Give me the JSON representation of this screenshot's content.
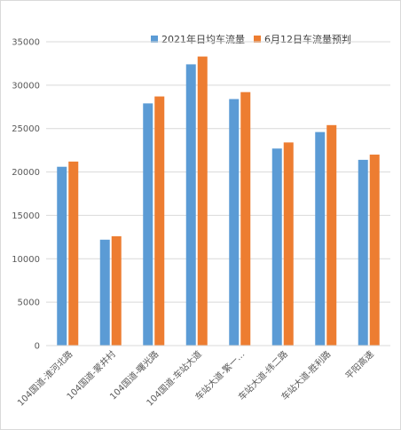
{
  "chart_data": {
    "type": "bar",
    "categories": [
      "104国道-淮河北路",
      "104国道-蒙井村",
      "104国道-曙光路",
      "104国道-车站大道",
      "车站大道-繁一…",
      "车站大道-纬二路",
      "车站大道-胜利路",
      "平阳高速"
    ],
    "series": [
      {
        "name": "2021年日均车流量",
        "color": "#5b9bd5",
        "values": [
          20600,
          12200,
          27900,
          32400,
          28400,
          22700,
          24600,
          21400
        ]
      },
      {
        "name": "6月12日车流量预判",
        "color": "#ed7d31",
        "values": [
          21200,
          12600,
          28700,
          33300,
          29200,
          23400,
          25400,
          22000
        ]
      }
    ],
    "yticks": [
      0,
      5000,
      10000,
      15000,
      20000,
      25000,
      30000,
      35000
    ],
    "ylim": [
      0,
      35000
    ],
    "grid": true,
    "legend_position": "top-right"
  }
}
